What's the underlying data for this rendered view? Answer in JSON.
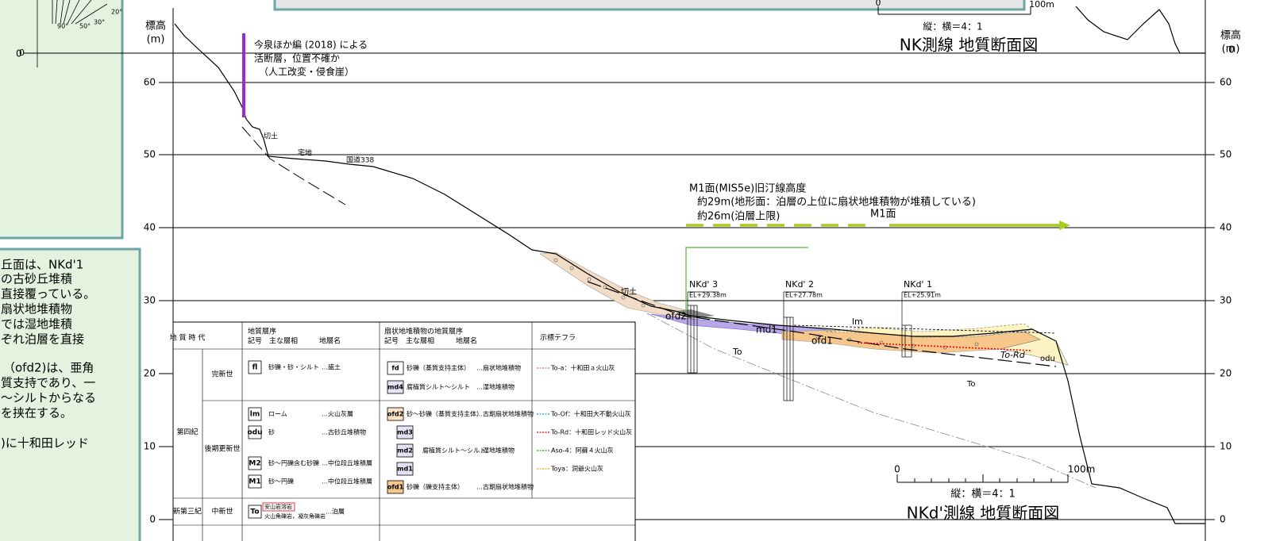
{
  "rose": {
    "zero": "0",
    "angles": [
      "20°",
      "30°",
      "50°",
      "90°"
    ]
  },
  "top_section": {
    "scale_zero": "0",
    "scale_end": "100m",
    "ratio": "縦：横＝4：1",
    "title": "NK測線 地質断面図"
  },
  "axis": {
    "left_title": "標高",
    "left_unit": "(m)",
    "top_zero": "0",
    "right_title": "標高",
    "right_unit": "(m)",
    "right_top_zero": "0",
    "ticks": [
      "60",
      "50",
      "40",
      "30",
      "20",
      "10",
      "0"
    ]
  },
  "annotations": {
    "fault": [
      "今泉ほか編 (2018) による",
      "活断層，位置不確か",
      "（人工改変・侵食崖）"
    ],
    "cut1": "切土",
    "residential": "宅地",
    "road": "国道338",
    "cut2": "切土",
    "m1_note": [
      "M1面(MIS5e)旧汀線高度",
      "約29m(地形面：泊層の上位に扇状地堆積物が堆積している)",
      "約26m(泊層上限)"
    ],
    "m1_arrow": "M1面"
  },
  "boreholes": [
    {
      "name": "NKd' 3",
      "elevation": "EL+29.38m"
    },
    {
      "name": "NKd' 2",
      "elevation": "EL+27.78m"
    },
    {
      "name": "NKd' 1",
      "elevation": "EL+25.91m"
    }
  ],
  "units": [
    "ofd2",
    "md1",
    "lm",
    "ofd1",
    "To",
    "To-Rd",
    "odu",
    "To"
  ],
  "bottom_section": {
    "scale_zero": "0",
    "scale_end": "100m",
    "ratio": "縦：横＝4：1",
    "title": "NKd'測線 地質断面図"
  },
  "left_panel": {
    "lines": [
      "丘面は、NKd'1",
      "の古砂丘堆積",
      "直接覆っている。",
      "扇状地堆積物",
      "では湿地堆積",
      "ぞれ泊層を直接",
      "（ofd2)は、亜角",
      "質支持であり、一",
      "～シルトからなる",
      "を挟在する。",
      ")に十和田レッド"
    ]
  },
  "legend": {
    "headers": [
      "地 質 時 代",
      "地質層序",
      "記号　主な層相　　　地層名",
      "扇状地堆積物の地質層序",
      "記号　主な層相　　　地層名",
      "示標テフラ"
    ],
    "periods": [
      "第四紀",
      "完新世",
      "後期更新世",
      "新第三紀",
      "中新世"
    ],
    "strata": [
      [
        "fl",
        "砂礫・砂・シルト",
        "…盛土"
      ],
      [
        "lm",
        "ローム",
        "…火山灰層"
      ],
      [
        "odu",
        "砂",
        "…古砂丘堆積物"
      ],
      [
        "M2",
        "砂～円礫含む砂礫",
        "…中位段丘堆積層"
      ],
      [
        "M1",
        "砂～円礫",
        "…中位段丘堆積層"
      ],
      [
        "To",
        "安山岩溶岩",
        "火山角礫岩，凝灰角礫岩",
        "…泊層"
      ]
    ],
    "fan": [
      [
        "fd",
        "砂礫（基質支持主体）",
        "…扇状地堆積物"
      ],
      [
        "md4",
        "腐植質シルト～シルト",
        "…湿地堆積物"
      ],
      [
        "ofd2",
        "砂～砂礫（基質支持主体）",
        "…古期扇状地堆積物"
      ],
      [
        "md3",
        "md2",
        "md1",
        "腐植質シルト～シルト",
        "…湿地堆積物"
      ],
      [
        "ofd1",
        "砂礫（礫支持主体）",
        "…古期扇状地堆積物"
      ]
    ],
    "tephra": [
      "To-a：十和田ａ火山灰",
      "To-Of：十和田大不動火山灰",
      "To-Rd：十和田レッド火山灰",
      "Aso-4：阿蘇４火山灰",
      "Toya：洞爺火山灰"
    ]
  }
}
